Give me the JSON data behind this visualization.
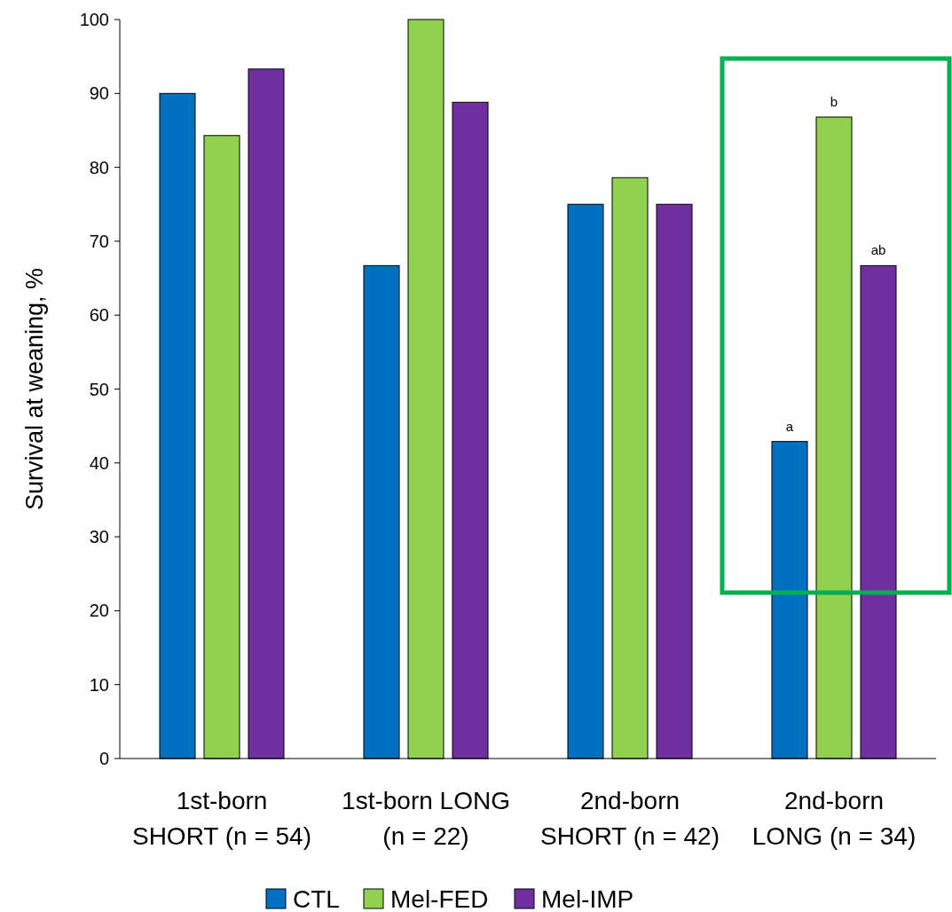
{
  "chart_data": {
    "type": "bar",
    "ylabel": "Survival at weaning, %",
    "categories": [
      "1st-born\nSHORT (n = 54)",
      "1st-born LONG\n(n = 22)",
      "2nd-born\nSHORT (n = 42)",
      "2nd-born\nLONG (n = 34)"
    ],
    "series": [
      {
        "name": "CTL",
        "color": "#0070c0",
        "values": [
          90,
          66.7,
          75,
          42.9
        ]
      },
      {
        "name": "Mel-FED",
        "color": "#92d050",
        "values": [
          84.3,
          100,
          78.6,
          86.8
        ]
      },
      {
        "name": "Mel-IMP",
        "color": "#7030a0",
        "values": [
          93.3,
          88.8,
          75,
          66.7
        ]
      }
    ],
    "ylim": [
      0,
      100
    ],
    "yticks": [
      0,
      10,
      20,
      30,
      40,
      50,
      60,
      70,
      80,
      90,
      100
    ],
    "grid": false,
    "legend": "bottom",
    "annotations": [
      "a",
      "b",
      "ab"
    ]
  }
}
